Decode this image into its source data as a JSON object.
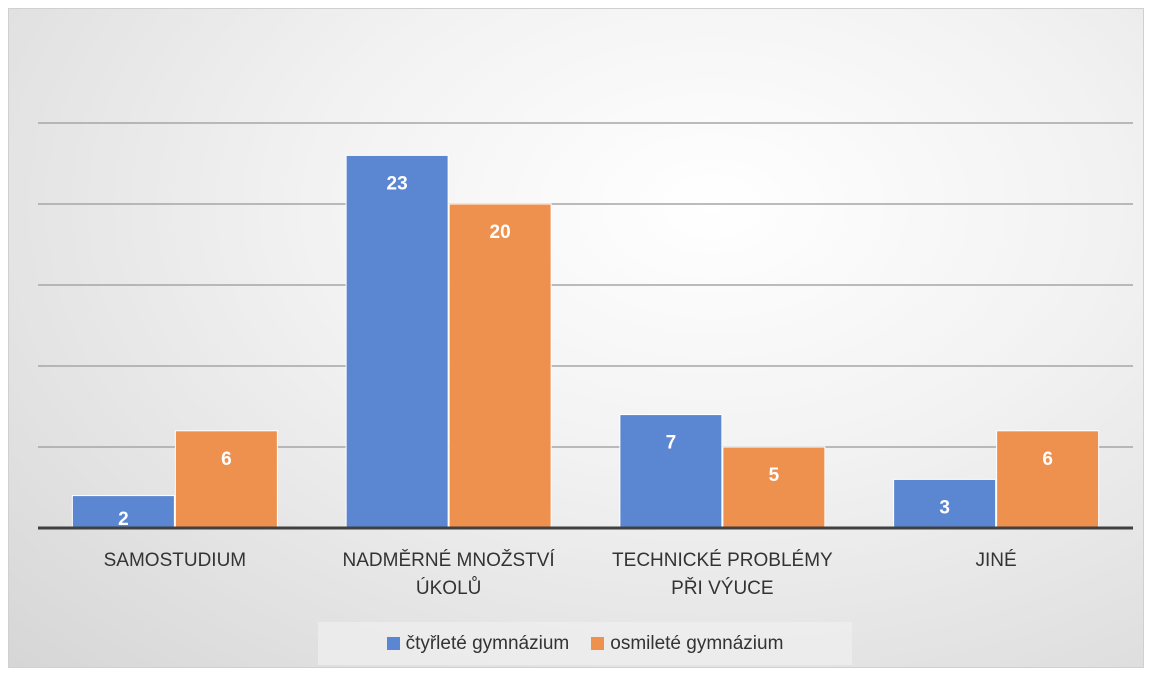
{
  "chart_data": {
    "type": "bar",
    "categories": [
      "SAMOSTUDIUM",
      "NADMĚRNÉ MNOŽSTVÍ ÚKOLŮ",
      "TECHNICKÉ PROBLÉMY PŘI VÝUCE",
      "JINÉ"
    ],
    "series": [
      {
        "name": "čtyřleté gymnázium",
        "color": "#5b86d1",
        "values": [
          2,
          23,
          7,
          3
        ]
      },
      {
        "name": "osmileté gymnázium",
        "color": "#ee914f",
        "values": [
          6,
          20,
          5,
          6
        ]
      }
    ],
    "ylim": [
      0,
      25
    ],
    "yticks": [
      0,
      5,
      10,
      15,
      20,
      25
    ],
    "grid": true,
    "legend": "bottom"
  }
}
